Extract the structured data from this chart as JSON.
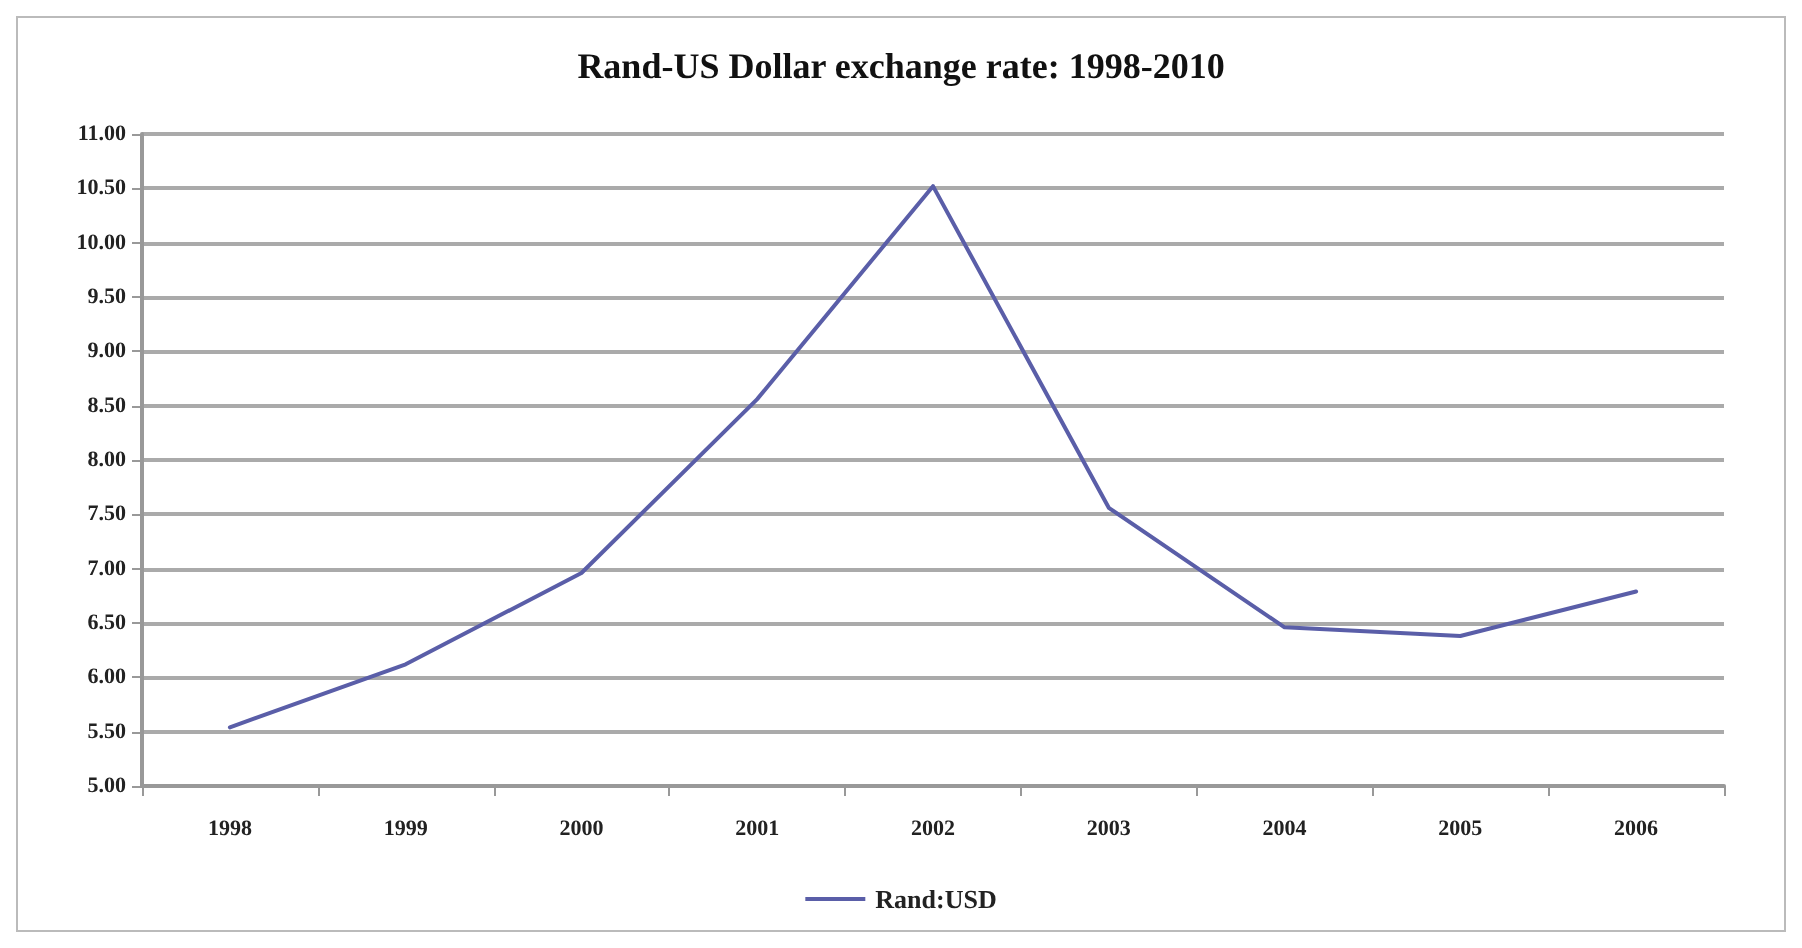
{
  "chart_data": {
    "type": "line",
    "title": "Rand-US Dollar exchange rate: 1998-2010",
    "categories": [
      "1998",
      "1999",
      "2000",
      "2001",
      "2002",
      "2003",
      "2004",
      "2005",
      "2006"
    ],
    "series": [
      {
        "name": "Rand:USD",
        "color": "#5a5ea8",
        "values": [
          5.54,
          6.12,
          6.96,
          8.56,
          10.52,
          7.56,
          6.46,
          6.38,
          6.79
        ]
      }
    ],
    "ylim": [
      5,
      11
    ],
    "yticks": [
      {
        "value": 5,
        "label": "5.00"
      },
      {
        "value": 5.5,
        "label": "5.50"
      },
      {
        "value": 6,
        "label": "6.00"
      },
      {
        "value": 6.5,
        "label": "6.50"
      },
      {
        "value": 7,
        "label": "7.00"
      },
      {
        "value": 7.5,
        "label": "7.50"
      },
      {
        "value": 8,
        "label": "8.00"
      },
      {
        "value": 8.5,
        "label": "8.50"
      },
      {
        "value": 9,
        "label": "9.00"
      },
      {
        "value": 9.5,
        "label": "9.50"
      },
      {
        "value": 10,
        "label": "10.00"
      },
      {
        "value": 10.5,
        "label": "10.50"
      },
      {
        "value": 11,
        "label": "11.00"
      }
    ],
    "grid": "y",
    "legend": "bottom",
    "marker": "none",
    "line_style": "solid"
  }
}
